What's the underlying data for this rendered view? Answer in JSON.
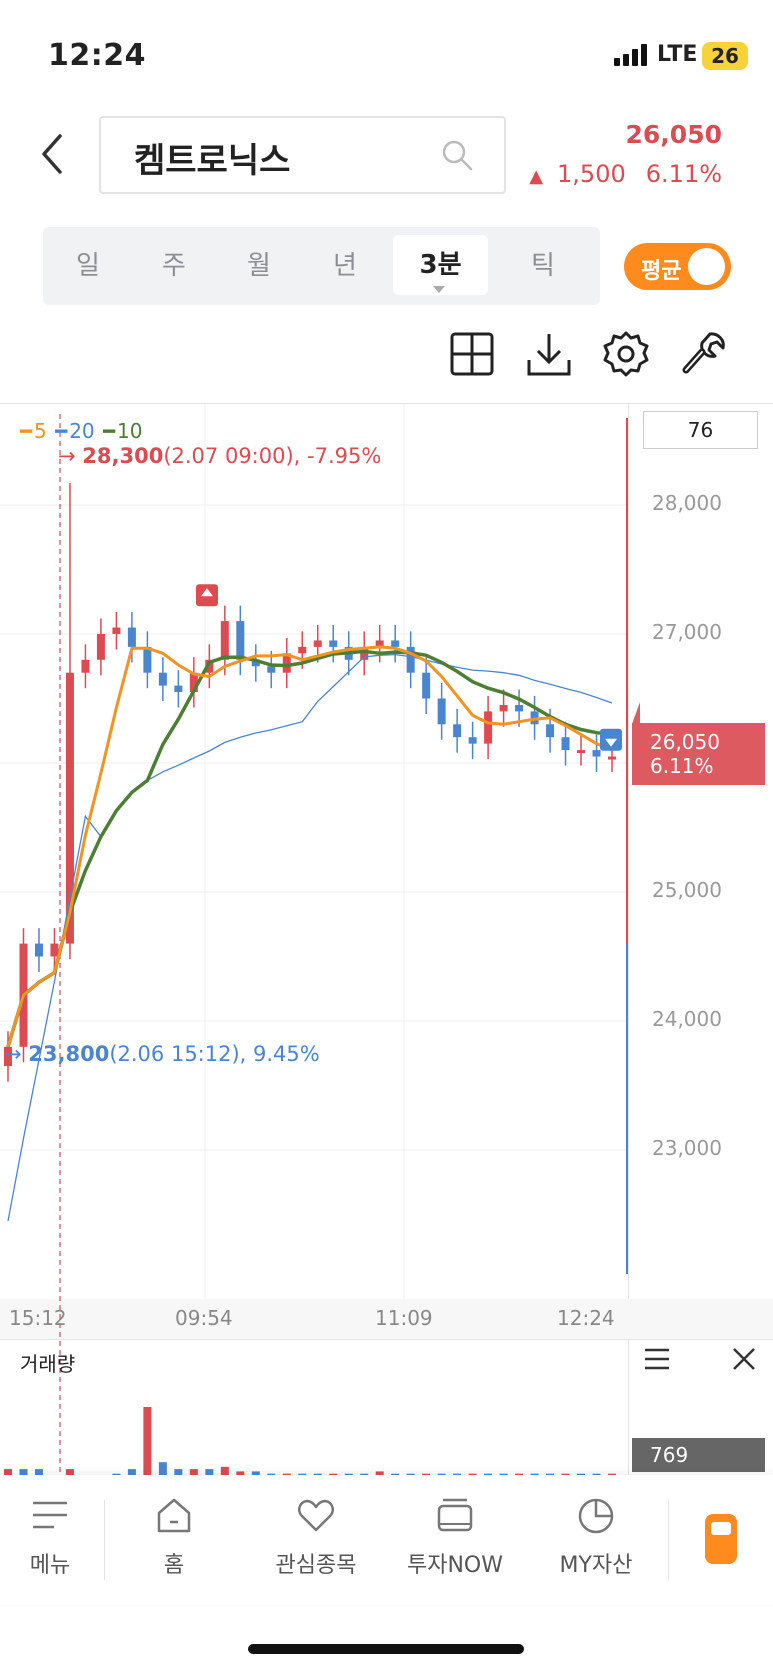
{
  "status": {
    "time": "12:24",
    "network": "LTE",
    "battery": "26"
  },
  "header": {
    "stock_name": "켐트로닉스",
    "price": "26,050",
    "change_arrow": "▲",
    "change_amount": "1,500",
    "change_percent": "6.11%"
  },
  "tabs": [
    {
      "label": "일"
    },
    {
      "label": "주"
    },
    {
      "label": "월"
    },
    {
      "label": "년"
    },
    {
      "label": "3분"
    },
    {
      "label": "틱"
    }
  ],
  "active_tab": "3분",
  "avg_toggle": {
    "label": "평균",
    "on": true
  },
  "tool_icons": [
    "grid-icon",
    "download-icon",
    "settings-icon",
    "wrench-icon"
  ],
  "chart_data": {
    "type": "candlestick",
    "moving_averages": [
      {
        "name": "5",
        "color": "#f39321"
      },
      {
        "name": "20",
        "color": "#4a86d0"
      },
      {
        "name": "10",
        "color": "#4c7f33"
      }
    ],
    "box_value": "76",
    "y_ticks": [
      "28,000",
      "27,000",
      "26,050",
      "6.11%",
      "25,000",
      "24,000",
      "23,000"
    ],
    "ylim": [
      22000,
      28500
    ],
    "x_ticks": [
      "15:12",
      "09:54",
      "11:09",
      "12:24"
    ],
    "annotations": {
      "high": {
        "price": "28,300",
        "detail": "(2.07 09:00), -7.95%"
      },
      "low": {
        "price": "23,800",
        "detail": "(2.06 15:12), 9.45%"
      }
    },
    "current_price_tag": {
      "price": "26,050",
      "percent": "6.11%"
    },
    "close_prices": [
      23800,
      24600,
      24500,
      24600,
      26700,
      26800,
      27000,
      27050,
      26900,
      26700,
      26600,
      26550,
      26700,
      26800,
      27100,
      26800,
      26750,
      26700,
      26850,
      26900,
      26950,
      26900,
      26800,
      26900,
      26950,
      26900,
      26700,
      26500,
      26300,
      26200,
      26150,
      26400,
      26450,
      26400,
      26300,
      26200,
      26100,
      26100,
      26050,
      26050
    ],
    "volume": {
      "title": "거래량",
      "last_value": "769",
      "bars": [
        3,
        3,
        3,
        0,
        3,
        0,
        0,
        1,
        3,
        30,
        6,
        3,
        3,
        3,
        4,
        2,
        2,
        1,
        1,
        1,
        1,
        1,
        1,
        1,
        2,
        1,
        1,
        1,
        1,
        1,
        1,
        1,
        1,
        1,
        1,
        1,
        1,
        1,
        1,
        1
      ]
    }
  },
  "bottom_nav": [
    {
      "label": "메뉴",
      "icon": "menu-icon"
    },
    {
      "label": "홈",
      "icon": "home-icon"
    },
    {
      "label": "관심종목",
      "icon": "heart-icon"
    },
    {
      "label": "투자NOW",
      "icon": "stack-icon"
    },
    {
      "label": "MY자산",
      "icon": "pie-chart-icon"
    }
  ],
  "colors": {
    "up": "#dd4b50",
    "down": "#4a86d0",
    "accent": "#ff8a1e"
  }
}
